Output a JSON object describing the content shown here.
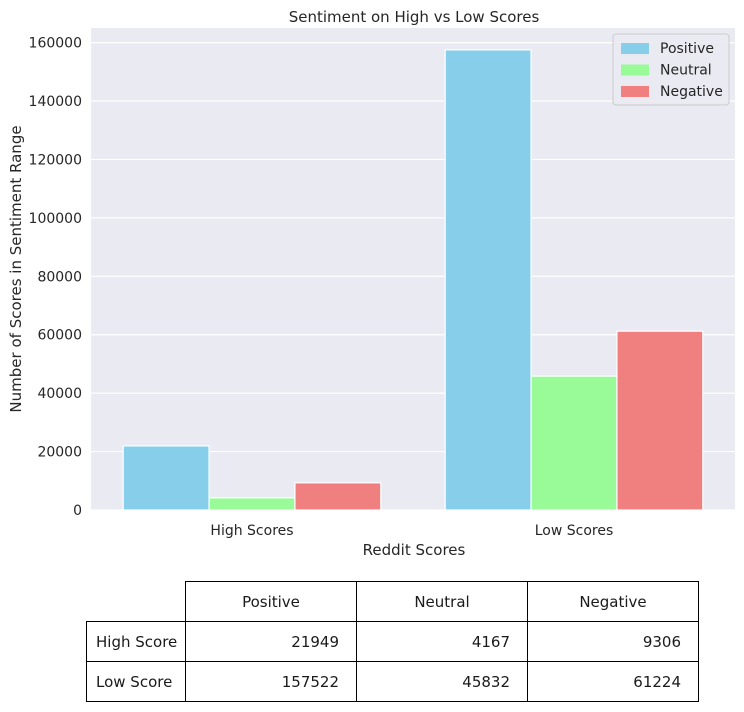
{
  "chart_data": {
    "type": "bar",
    "title": "Sentiment on High vs Low Scores",
    "xlabel": "Reddit Scores",
    "ylabel": "Number of Scores in Sentiment Range",
    "categories": [
      "High Scores",
      "Low Scores"
    ],
    "series": [
      {
        "name": "Positive",
        "values": [
          21949,
          157522
        ],
        "color": "#87ceeb"
      },
      {
        "name": "Neutral",
        "values": [
          4167,
          45832
        ],
        "color": "#98fb98"
      },
      {
        "name": "Negative",
        "values": [
          9306,
          61224
        ],
        "color": "#f08080"
      }
    ],
    "ylim": [
      0,
      165000
    ],
    "yticks": [
      0,
      20000,
      40000,
      60000,
      80000,
      100000,
      120000,
      140000,
      160000
    ],
    "grid": true,
    "legend": "top-right"
  },
  "table": {
    "columns": [
      "Positive",
      "Neutral",
      "Negative"
    ],
    "rows": [
      {
        "label": "High Score",
        "values": [
          "21949",
          "4167",
          "9306"
        ]
      },
      {
        "label": "Low Score",
        "values": [
          "157522",
          "45832",
          "61224"
        ]
      }
    ]
  },
  "colors": {
    "plot_bg": "#eaeaf2",
    "grid": "#ffffff"
  }
}
